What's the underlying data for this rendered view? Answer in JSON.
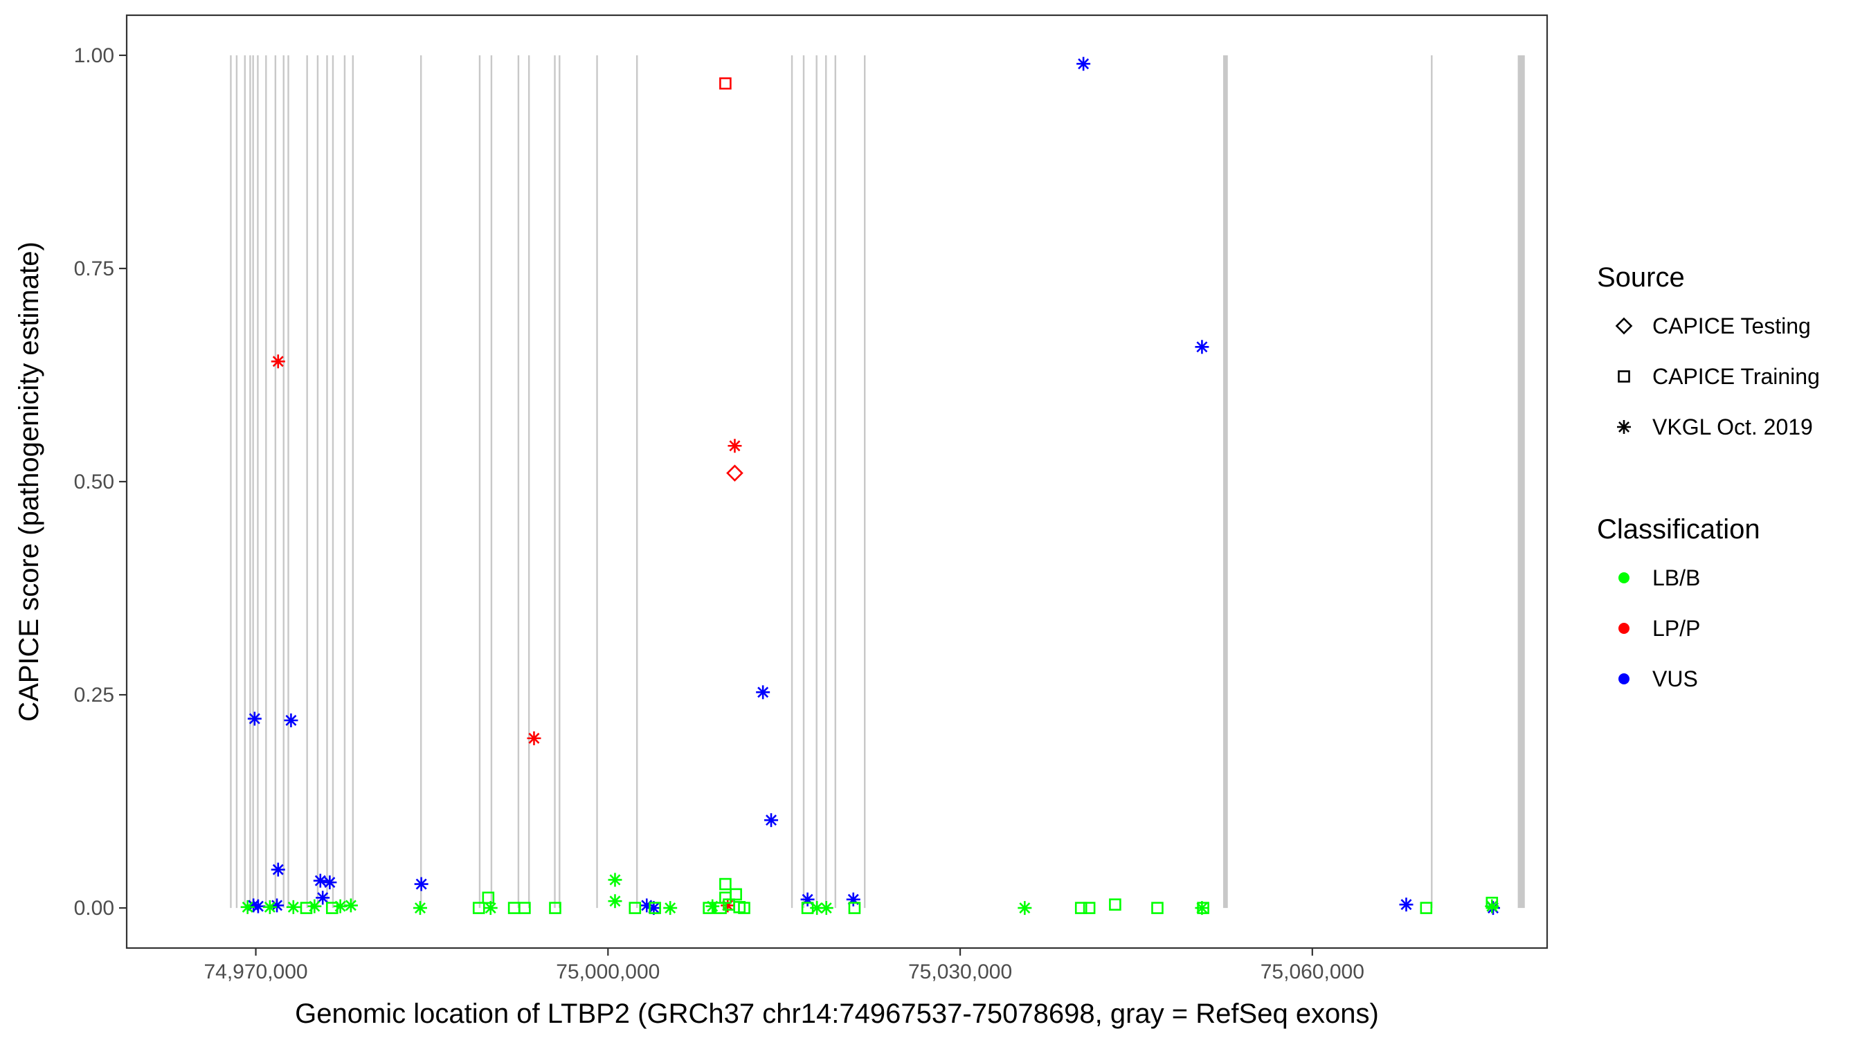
{
  "chart_data": {
    "type": "scatter",
    "xlabel": "Genomic location of LTBP2 (GRCh37 chr14:74967537-75078698, gray = RefSeq exons)",
    "ylabel": "CAPICE score (pathogenicity estimate)",
    "xlim": [
      74959000,
      75080000
    ],
    "ylim": [
      -0.047,
      1.047
    ],
    "x_ticks": [
      74970000,
      75000000,
      75030000,
      75060000
    ],
    "x_tick_labels": [
      "74,970,000",
      "75,000,000",
      "75,030,000",
      "75,060,000"
    ],
    "y_ticks": [
      0,
      0.25,
      0.5,
      0.75,
      1.0
    ],
    "y_tick_labels": [
      "0.00",
      "0.25",
      "0.50",
      "0.75",
      "1.00"
    ],
    "grid": false,
    "exon_color": "#c8c8c8",
    "exon_ymax": 1.0,
    "exons": [
      [
        74967800,
        74967900
      ],
      [
        74968300,
        74968400
      ],
      [
        74969000,
        74969100
      ],
      [
        74969450,
        74969550
      ],
      [
        74969700,
        74969800
      ],
      [
        74970100,
        74970200
      ],
      [
        74970800,
        74970900
      ],
      [
        74971600,
        74971700
      ],
      [
        74972300,
        74972400
      ],
      [
        74972700,
        74972800
      ],
      [
        74974300,
        74974400
      ],
      [
        74975200,
        74975300
      ],
      [
        74976000,
        74976100
      ],
      [
        74976500,
        74976600
      ],
      [
        74977500,
        74977600
      ],
      [
        74978200,
        74978300
      ],
      [
        74984000,
        74984100
      ],
      [
        74989000,
        74989100
      ],
      [
        74990000,
        74990100
      ],
      [
        74992300,
        74992400
      ],
      [
        74993200,
        74993300
      ],
      [
        74995400,
        74995500
      ],
      [
        74995800,
        74995900
      ],
      [
        74999000,
        74999100
      ],
      [
        75002400,
        75002500
      ],
      [
        75015600,
        75015700
      ],
      [
        75016600,
        75016700
      ],
      [
        75017700,
        75017800
      ],
      [
        75018500,
        75018600
      ],
      [
        75019300,
        75019400
      ],
      [
        75021800,
        75021900
      ],
      [
        75052400,
        75052800
      ],
      [
        75070100,
        75070200
      ],
      [
        75077500,
        75078100
      ]
    ],
    "legend": {
      "source_title": "Source",
      "source_items": [
        {
          "label": "CAPICE Testing",
          "shape": "diamond"
        },
        {
          "label": "CAPICE Training",
          "shape": "square"
        },
        {
          "label": "VKGL Oct. 2019",
          "shape": "asterisk"
        }
      ],
      "class_title": "Classification",
      "class_items": [
        {
          "label": "LB/B",
          "color": "#00ff00"
        },
        {
          "label": "LP/P",
          "color": "#ff0000"
        },
        {
          "label": "VUS",
          "color": "#0000ff"
        }
      ]
    },
    "series": [
      {
        "source": "VKGL Oct. 2019",
        "shape": "asterisk",
        "points": [
          {
            "x": 74969900,
            "y": 0.222,
            "c": "VUS"
          },
          {
            "x": 74973000,
            "y": 0.22,
            "c": "VUS"
          },
          {
            "x": 74971900,
            "y": 0.641,
            "c": "LP/P"
          },
          {
            "x": 74971900,
            "y": 0.045,
            "c": "VUS"
          },
          {
            "x": 74975500,
            "y": 0.032,
            "c": "VUS"
          },
          {
            "x": 74976300,
            "y": 0.03,
            "c": "VUS"
          },
          {
            "x": 74975700,
            "y": 0.012,
            "c": "VUS"
          },
          {
            "x": 74984100,
            "y": 0.028,
            "c": "VUS"
          },
          {
            "x": 74969800,
            "y": 0.003,
            "c": "VUS"
          },
          {
            "x": 74971800,
            "y": 0.003,
            "c": "VUS"
          },
          {
            "x": 74970200,
            "y": 0.002,
            "c": "VUS"
          },
          {
            "x": 74993700,
            "y": 0.199,
            "c": "LP/P"
          },
          {
            "x": 75010800,
            "y": 0.542,
            "c": "LP/P"
          },
          {
            "x": 75010200,
            "y": 0.003,
            "c": "LP/P"
          },
          {
            "x": 75013200,
            "y": 0.253,
            "c": "VUS"
          },
          {
            "x": 75013900,
            "y": 0.103,
            "c": "VUS"
          },
          {
            "x": 75017000,
            "y": 0.01,
            "c": "VUS"
          },
          {
            "x": 75020900,
            "y": 0.01,
            "c": "VUS"
          },
          {
            "x": 75003300,
            "y": 0.003,
            "c": "VUS"
          },
          {
            "x": 75003900,
            "y": 0.0,
            "c": "VUS"
          },
          {
            "x": 75040500,
            "y": 0.99,
            "c": "VUS"
          },
          {
            "x": 75050600,
            "y": 0.658,
            "c": "VUS"
          },
          {
            "x": 75068000,
            "y": 0.004,
            "c": "VUS"
          },
          {
            "x": 75075400,
            "y": 0.0,
            "c": "VUS"
          },
          {
            "x": 75000600,
            "y": 0.033,
            "c": "LB/B"
          },
          {
            "x": 75000600,
            "y": 0.008,
            "c": "LB/B"
          },
          {
            "x": 74969300,
            "y": 0.001,
            "c": "LB/B"
          },
          {
            "x": 74971200,
            "y": 0.001,
            "c": "LB/B"
          },
          {
            "x": 74973200,
            "y": 0.001,
            "c": "LB/B"
          },
          {
            "x": 74975000,
            "y": 0.002,
            "c": "LB/B"
          },
          {
            "x": 74977200,
            "y": 0.002,
            "c": "LB/B"
          },
          {
            "x": 74978100,
            "y": 0.003,
            "c": "LB/B"
          },
          {
            "x": 74984000,
            "y": 0.0,
            "c": "LB/B"
          },
          {
            "x": 74990000,
            "y": 0.0,
            "c": "LB/B"
          },
          {
            "x": 75005300,
            "y": 0.0,
            "c": "LB/B"
          },
          {
            "x": 75008900,
            "y": 0.002,
            "c": "LB/B"
          },
          {
            "x": 75017800,
            "y": 0.0,
            "c": "LB/B"
          },
          {
            "x": 75018600,
            "y": 0.0,
            "c": "LB/B"
          },
          {
            "x": 75035500,
            "y": 0.0,
            "c": "LB/B"
          },
          {
            "x": 75050600,
            "y": 0.0,
            "c": "LB/B"
          },
          {
            "x": 75075300,
            "y": 0.002,
            "c": "LB/B"
          }
        ]
      },
      {
        "source": "CAPICE Training",
        "shape": "square",
        "points": [
          {
            "x": 75010000,
            "y": 0.967,
            "c": "LP/P"
          },
          {
            "x": 74989000,
            "y": 0.0,
            "c": "LB/B"
          },
          {
            "x": 74989800,
            "y": 0.012,
            "c": "LB/B"
          },
          {
            "x": 74992000,
            "y": 0.0,
            "c": "LB/B"
          },
          {
            "x": 74992900,
            "y": 0.0,
            "c": "LB/B"
          },
          {
            "x": 74995500,
            "y": 0.0,
            "c": "LB/B"
          },
          {
            "x": 74974300,
            "y": 0.0,
            "c": "LB/B"
          },
          {
            "x": 74976500,
            "y": 0.0,
            "c": "LB/B"
          },
          {
            "x": 75002300,
            "y": 0.0,
            "c": "LB/B"
          },
          {
            "x": 75004000,
            "y": 0.0,
            "c": "LB/B"
          },
          {
            "x": 75008600,
            "y": 0.0,
            "c": "LB/B"
          },
          {
            "x": 75009600,
            "y": 0.0,
            "c": "LB/B"
          },
          {
            "x": 75010000,
            "y": 0.028,
            "c": "LB/B"
          },
          {
            "x": 75010000,
            "y": 0.012,
            "c": "LB/B"
          },
          {
            "x": 75010300,
            "y": 0.004,
            "c": "LB/B"
          },
          {
            "x": 75010900,
            "y": 0.016,
            "c": "LB/B"
          },
          {
            "x": 75011200,
            "y": 0.001,
            "c": "LB/B"
          },
          {
            "x": 75011600,
            "y": 0.0,
            "c": "LB/B"
          },
          {
            "x": 75017000,
            "y": 0.0,
            "c": "LB/B"
          },
          {
            "x": 75021000,
            "y": 0.0,
            "c": "LB/B"
          },
          {
            "x": 75040300,
            "y": 0.0,
            "c": "LB/B"
          },
          {
            "x": 75041000,
            "y": 0.0,
            "c": "LB/B"
          },
          {
            "x": 75043200,
            "y": 0.004,
            "c": "LB/B"
          },
          {
            "x": 75046800,
            "y": 0.0,
            "c": "LB/B"
          },
          {
            "x": 75050700,
            "y": 0.0,
            "c": "LB/B"
          },
          {
            "x": 75069700,
            "y": 0.0,
            "c": "LB/B"
          },
          {
            "x": 75075300,
            "y": 0.006,
            "c": "LB/B"
          }
        ]
      },
      {
        "source": "CAPICE Testing",
        "shape": "diamond",
        "points": [
          {
            "x": 75010800,
            "y": 0.51,
            "c": "LP/P"
          }
        ]
      }
    ]
  }
}
